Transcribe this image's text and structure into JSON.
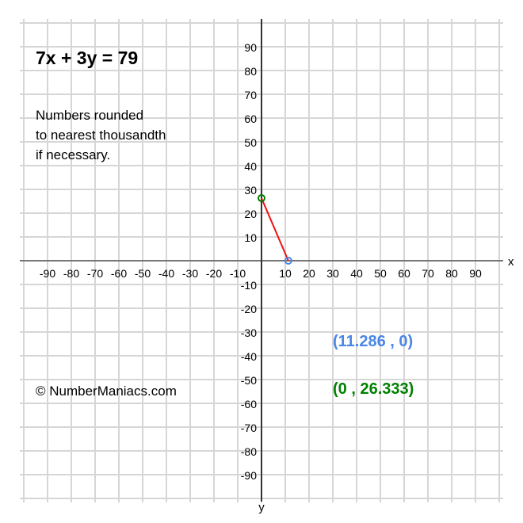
{
  "chart_data": {
    "type": "line",
    "title": "7x + 3y = 79",
    "note_lines": [
      "Numbers rounded",
      "to nearest thousandth",
      "if necessary."
    ],
    "xlabel": "x",
    "ylabel": "y",
    "xlim": [
      -100,
      100
    ],
    "ylim": [
      -100,
      100
    ],
    "grid": true,
    "grid_step": 10,
    "x_ticks": [
      -90,
      -80,
      -70,
      -60,
      -50,
      -40,
      -30,
      -20,
      -10,
      10,
      20,
      30,
      40,
      50,
      60,
      70,
      80,
      90
    ],
    "y_ticks": [
      90,
      80,
      70,
      60,
      50,
      40,
      30,
      20,
      10,
      -10,
      -20,
      -30,
      -40,
      -50,
      -60,
      -70,
      -80,
      -90
    ],
    "series": [
      {
        "x": [
          0,
          11.286
        ],
        "y": [
          26.333,
          0
        ],
        "color": "#ee1111"
      }
    ],
    "points": [
      {
        "x": 11.286,
        "y": 0,
        "label": "(11.286 , 0)",
        "color": "#4a86e8"
      },
      {
        "x": 0,
        "y": 26.333,
        "label": "(0 , 26.333)",
        "color": "#008000"
      }
    ]
  },
  "copyright": "© NumberManiacs.com"
}
